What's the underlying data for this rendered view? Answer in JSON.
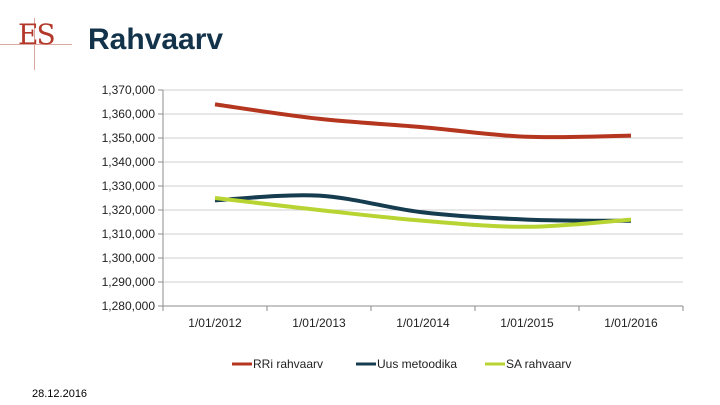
{
  "slide": {
    "logo_text": "ES",
    "title": "Rahvaarv",
    "date": "28.12.2016"
  },
  "chart_data": {
    "type": "line",
    "title": "Rahvaarv",
    "categories": [
      "1/01/2012",
      "1/01/2013",
      "1/01/2014",
      "1/01/2015",
      "1/01/2016"
    ],
    "ylim": [
      1280000,
      1370000
    ],
    "ytick_step": 10000,
    "ytick_labels": [
      "1,280,000",
      "1,290,000",
      "1,300,000",
      "1,310,000",
      "1,320,000",
      "1,330,000",
      "1,340,000",
      "1,350,000",
      "1,360,000",
      "1,370,000"
    ],
    "grid": true,
    "legend_position": "bottom",
    "series": [
      {
        "name": "RRi rahvaarv",
        "color": "#b5361f",
        "values": [
          1364000,
          1358000,
          1354500,
          1350500,
          1351000
        ]
      },
      {
        "name": "Uus metoodika",
        "color": "#163c4f",
        "values": [
          1324000,
          1326000,
          1319000,
          1316000,
          1315500
        ]
      },
      {
        "name": "SA rahvaarv",
        "color": "#b8d433",
        "values": [
          1325000,
          1320000,
          1315500,
          1313000,
          1316000
        ]
      }
    ]
  }
}
